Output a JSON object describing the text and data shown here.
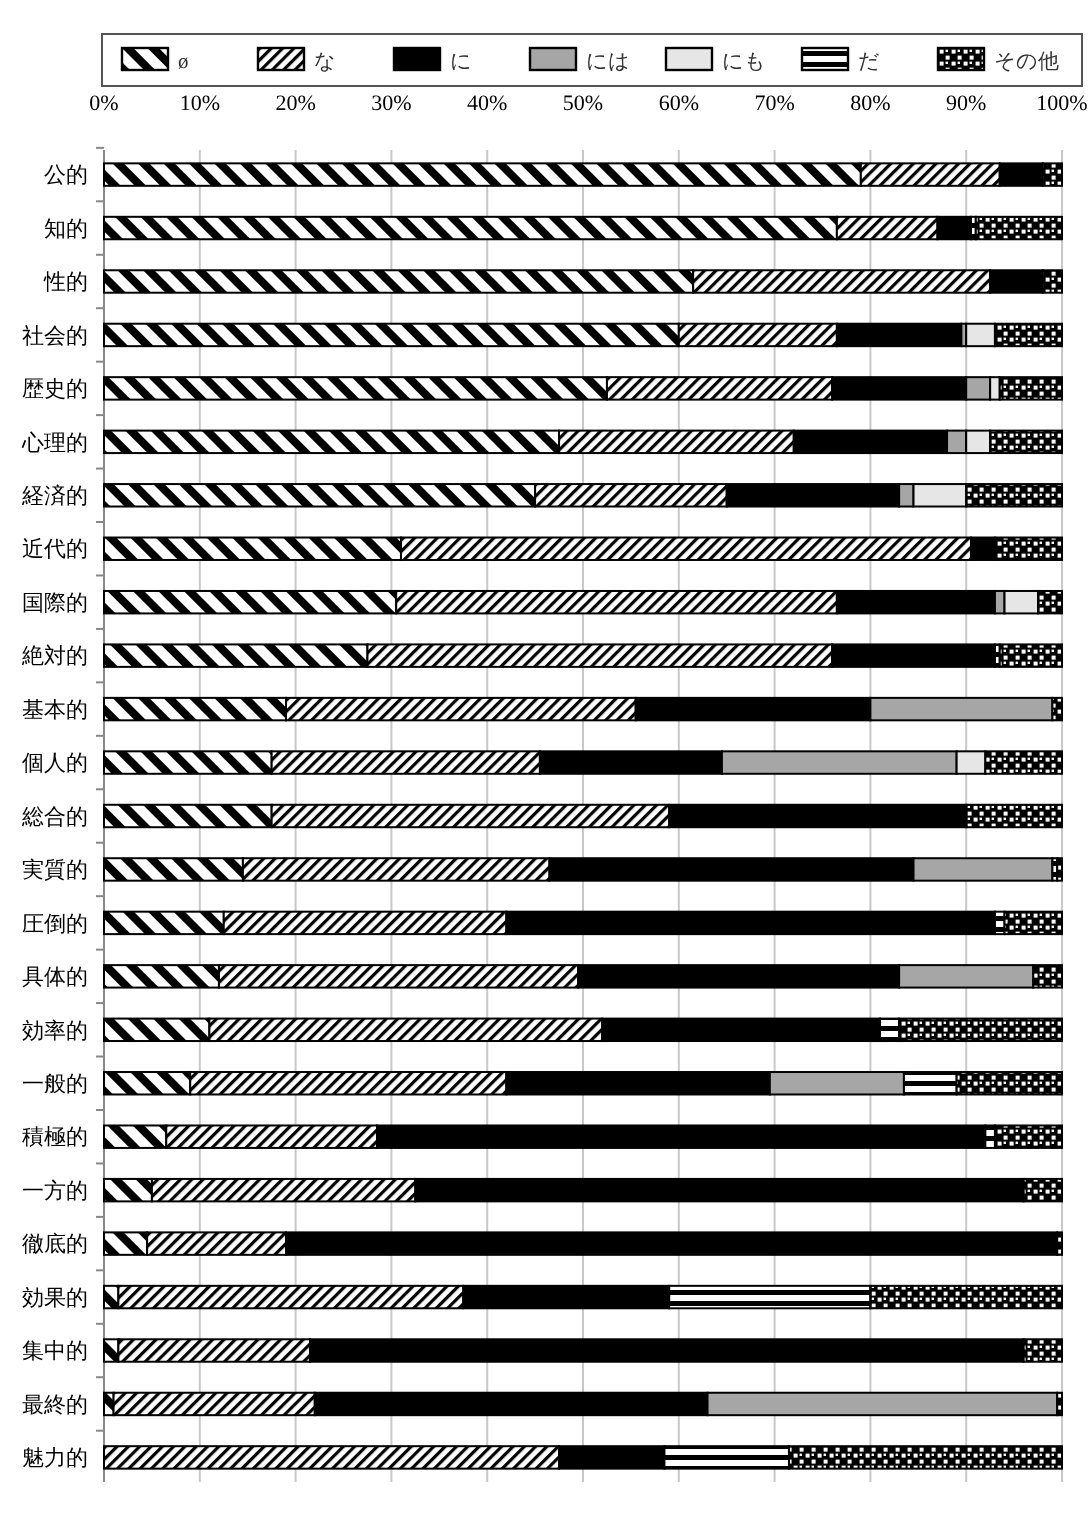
{
  "chart_data": {
    "type": "bar",
    "orientation": "horizontal",
    "stacked": true,
    "legend": "top",
    "grid": "x",
    "categories": [
      "公的",
      "知的",
      "性的",
      "社会的",
      "歴史的",
      "心理的",
      "経済的",
      "近代的",
      "国際的",
      "絶対的",
      "基本的",
      "個人的",
      "総合的",
      "実質的",
      "圧倒的",
      "具体的",
      "効率的",
      "一般的",
      "積極的",
      "一方的",
      "徹底的",
      "効果的",
      "集中的",
      "最終的",
      "魅力的"
    ],
    "xlim": [
      0,
      100
    ],
    "xticks": [
      {
        "value": 0,
        "label": "0%"
      },
      {
        "value": 10,
        "label": "10%"
      },
      {
        "value": 20,
        "label": "20%"
      },
      {
        "value": 30,
        "label": "30%"
      },
      {
        "value": 40,
        "label": "40%"
      },
      {
        "value": 50,
        "label": "50%"
      },
      {
        "value": 60,
        "label": "60%"
      },
      {
        "value": 70,
        "label": "70%"
      },
      {
        "value": 80,
        "label": "80%"
      },
      {
        "value": 90,
        "label": "90%"
      },
      {
        "value": 100,
        "label": "100%"
      }
    ],
    "series": [
      {
        "name": "ø",
        "color": "#000000",
        "values": [
          79,
          76.5,
          61.5,
          60,
          52.5,
          47.5,
          45,
          31,
          30.5,
          27.5,
          19,
          17.5,
          17.5,
          14.5,
          12.5,
          12,
          11,
          9,
          6.5,
          5,
          4.5,
          1.5,
          1.5,
          1,
          0
        ]
      },
      {
        "name": "な",
        "color": "#000000",
        "values": [
          14.5,
          10.5,
          31,
          16.5,
          23.5,
          24.5,
          20,
          59.5,
          46,
          48.5,
          36.5,
          28,
          41.5,
          32,
          29.5,
          37.5,
          41,
          33,
          22,
          27.5,
          14.5,
          36,
          20,
          21,
          47.5
        ]
      },
      {
        "name": "に",
        "color": "#000000",
        "values": [
          4.5,
          3.5,
          5.5,
          13,
          14,
          16,
          18,
          2.5,
          16.5,
          17,
          24.5,
          19,
          31,
          38,
          51,
          33.5,
          29,
          27.5,
          63.5,
          63.5,
          80.5,
          21.5,
          74.5,
          41,
          11
        ]
      },
      {
        "name": "には",
        "color": "#a6a6a6",
        "values": [
          0,
          0,
          0,
          0.5,
          2.5,
          2,
          1.5,
          0,
          1,
          0,
          19,
          24.5,
          0,
          14.5,
          0,
          14,
          0,
          14,
          0,
          0,
          0,
          0,
          0,
          36.5,
          0
        ]
      },
      {
        "name": "にも",
        "color": "#e6e6e6",
        "values": [
          0,
          0,
          0,
          3,
          1,
          2.5,
          5.5,
          0,
          3.5,
          0,
          0,
          3,
          0,
          0,
          0,
          0,
          0,
          0,
          0,
          0,
          0,
          0,
          0,
          0,
          0
        ]
      },
      {
        "name": "だ",
        "color": "#000000",
        "values": [
          0,
          0.5,
          0,
          0,
          0,
          0,
          0,
          0,
          0,
          0.5,
          0,
          0,
          0,
          0.5,
          1,
          0,
          2,
          5.5,
          1,
          0,
          0,
          21,
          0,
          0,
          13
        ]
      },
      {
        "name": "その他",
        "color": "#000000",
        "values": [
          2,
          9,
          2,
          7,
          6.5,
          7.5,
          10,
          7,
          2.5,
          6.5,
          1,
          8,
          10,
          0.5,
          6,
          3,
          17,
          11,
          7,
          4,
          0.5,
          20,
          4,
          0.5,
          28.5
        ]
      }
    ]
  }
}
